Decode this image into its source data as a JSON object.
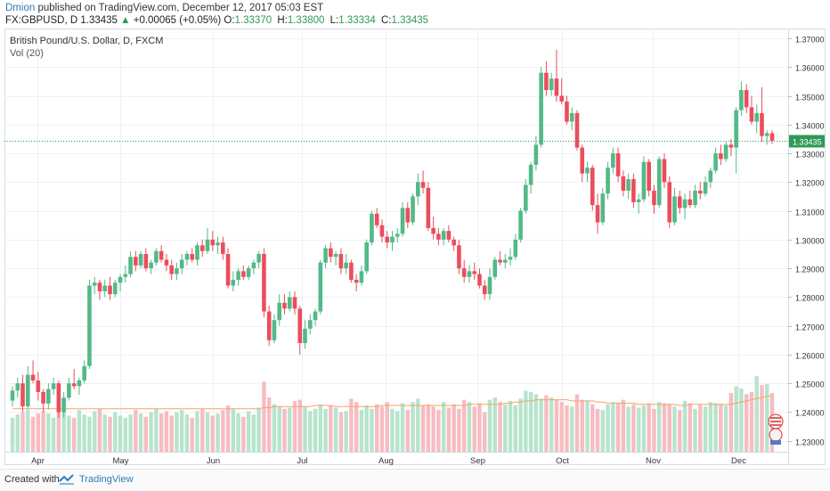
{
  "header": {
    "author": "Dmion",
    "published_text": "published on TradingView.com, December 12, 2017 05:03 EST",
    "symbol_interval": "FX:GBPUSD, D",
    "last": "1.33435",
    "change": "+0.00065 (+0.05%)",
    "o_label": "O:",
    "o_value": "1.33370",
    "h_label": "H:",
    "h_value": "1.33800",
    "l_label": "L:",
    "l_value": "1.33334",
    "c_label": "C:",
    "c_value": "1.33435"
  },
  "legend": {
    "title": "British Pound/U.S. Dollar, D, FXCM",
    "volume_label": "Vol (20)"
  },
  "footer": {
    "created_with": "Created with",
    "brand": "TradingView"
  },
  "colors": {
    "up": "#53b987",
    "down": "#eb4d5c",
    "volume_up": "#b7e4cc",
    "volume_down": "#f7bcc1",
    "ma_line": "#f2a46b",
    "last_price_line": "#2e9a56",
    "grid": "#eef1f5",
    "axis_text": "#333333"
  },
  "chart_data": {
    "type": "candlestick",
    "symbol": "FX:GBPUSD",
    "interval": "D",
    "ylim": [
      1.2262,
      1.3734
    ],
    "y_ticks": [
      "1.37000",
      "1.36000",
      "1.35000",
      "1.34000",
      "1.33000",
      "1.32000",
      "1.31000",
      "1.30000",
      "1.29000",
      "1.28000",
      "1.27000",
      "1.26000",
      "1.25000",
      "1.24000",
      "1.23000"
    ],
    "x_ticks": [
      "Apr",
      "May",
      "Jun",
      "Jul",
      "Aug",
      "Sep",
      "Oct",
      "Nov",
      "Dec"
    ],
    "last_price_label": "1.33435",
    "grid": true,
    "candles_ohlc": [
      [
        1.244,
        1.249,
        1.242,
        1.2475
      ],
      [
        1.2475,
        1.252,
        1.245,
        1.25
      ],
      [
        1.25,
        1.253,
        1.24,
        1.242
      ],
      [
        1.242,
        1.256,
        1.241,
        1.253
      ],
      [
        1.253,
        1.258,
        1.25,
        1.251
      ],
      [
        1.251,
        1.254,
        1.244,
        1.247
      ],
      [
        1.247,
        1.248,
        1.24,
        1.243
      ],
      [
        1.243,
        1.25,
        1.241,
        1.248
      ],
      [
        1.248,
        1.252,
        1.246,
        1.25
      ],
      [
        1.25,
        1.251,
        1.238,
        1.24
      ],
      [
        1.24,
        1.247,
        1.238,
        1.245
      ],
      [
        1.245,
        1.252,
        1.244,
        1.25
      ],
      [
        1.25,
        1.255,
        1.248,
        1.249
      ],
      [
        1.249,
        1.252,
        1.246,
        1.251
      ],
      [
        1.251,
        1.258,
        1.25,
        1.256
      ],
      [
        1.256,
        1.286,
        1.255,
        1.284
      ],
      [
        1.284,
        1.287,
        1.281,
        1.285
      ],
      [
        1.285,
        1.286,
        1.279,
        1.282
      ],
      [
        1.282,
        1.286,
        1.28,
        1.284
      ],
      [
        1.284,
        1.287,
        1.279,
        1.281
      ],
      [
        1.281,
        1.286,
        1.28,
        1.285
      ],
      [
        1.285,
        1.288,
        1.282,
        1.287
      ],
      [
        1.287,
        1.291,
        1.285,
        1.288
      ],
      [
        1.288,
        1.296,
        1.287,
        1.294
      ],
      [
        1.294,
        1.296,
        1.289,
        1.291
      ],
      [
        1.291,
        1.296,
        1.29,
        1.295
      ],
      [
        1.295,
        1.297,
        1.289,
        1.29
      ],
      [
        1.29,
        1.293,
        1.288,
        1.292
      ],
      [
        1.292,
        1.297,
        1.291,
        1.296
      ],
      [
        1.296,
        1.298,
        1.292,
        1.293
      ],
      [
        1.293,
        1.295,
        1.289,
        1.291
      ],
      [
        1.291,
        1.293,
        1.286,
        1.288
      ],
      [
        1.288,
        1.292,
        1.286,
        1.29
      ],
      [
        1.29,
        1.295,
        1.288,
        1.293
      ],
      [
        1.293,
        1.296,
        1.291,
        1.295
      ],
      [
        1.295,
        1.297,
        1.292,
        1.293
      ],
      [
        1.293,
        1.299,
        1.291,
        1.298
      ],
      [
        1.298,
        1.3,
        1.294,
        1.296
      ],
      [
        1.296,
        1.304,
        1.295,
        1.3
      ],
      [
        1.3,
        1.303,
        1.296,
        1.298
      ],
      [
        1.298,
        1.301,
        1.295,
        1.299
      ],
      [
        1.299,
        1.301,
        1.293,
        1.295
      ],
      [
        1.295,
        1.297,
        1.283,
        1.284
      ],
      [
        1.284,
        1.289,
        1.282,
        1.286
      ],
      [
        1.286,
        1.29,
        1.284,
        1.289
      ],
      [
        1.289,
        1.291,
        1.286,
        1.287
      ],
      [
        1.287,
        1.291,
        1.286,
        1.29
      ],
      [
        1.29,
        1.293,
        1.288,
        1.292
      ],
      [
        1.292,
        1.296,
        1.29,
        1.295
      ],
      [
        1.295,
        1.297,
        1.273,
        1.275
      ],
      [
        1.275,
        1.277,
        1.263,
        1.265
      ],
      [
        1.265,
        1.274,
        1.264,
        1.272
      ],
      [
        1.272,
        1.281,
        1.27,
        1.278
      ],
      [
        1.278,
        1.281,
        1.274,
        1.276
      ],
      [
        1.276,
        1.282,
        1.275,
        1.28
      ],
      [
        1.28,
        1.282,
        1.274,
        1.276
      ],
      [
        1.276,
        1.277,
        1.26,
        1.264
      ],
      [
        1.264,
        1.272,
        1.262,
        1.269
      ],
      [
        1.269,
        1.274,
        1.267,
        1.272
      ],
      [
        1.272,
        1.276,
        1.27,
        1.275
      ],
      [
        1.275,
        1.293,
        1.274,
        1.292
      ],
      [
        1.292,
        1.298,
        1.29,
        1.297
      ],
      [
        1.297,
        1.299,
        1.292,
        1.294
      ],
      [
        1.294,
        1.296,
        1.291,
        1.295
      ],
      [
        1.295,
        1.297,
        1.288,
        1.29
      ],
      [
        1.29,
        1.295,
        1.288,
        1.292
      ],
      [
        1.292,
        1.293,
        1.285,
        1.286
      ],
      [
        1.286,
        1.288,
        1.282,
        1.285
      ],
      [
        1.285,
        1.291,
        1.284,
        1.289
      ],
      [
        1.289,
        1.3,
        1.288,
        1.299
      ],
      [
        1.299,
        1.31,
        1.298,
        1.309
      ],
      [
        1.309,
        1.311,
        1.304,
        1.305
      ],
      [
        1.305,
        1.307,
        1.299,
        1.301
      ],
      [
        1.301,
        1.303,
        1.297,
        1.299
      ],
      [
        1.299,
        1.303,
        1.296,
        1.301
      ],
      [
        1.301,
        1.304,
        1.299,
        1.302
      ],
      [
        1.302,
        1.313,
        1.301,
        1.311
      ],
      [
        1.311,
        1.313,
        1.304,
        1.306
      ],
      [
        1.306,
        1.316,
        1.305,
        1.315
      ],
      [
        1.315,
        1.323,
        1.312,
        1.32
      ],
      [
        1.32,
        1.324,
        1.316,
        1.318
      ],
      [
        1.318,
        1.32,
        1.303,
        1.304
      ],
      [
        1.304,
        1.308,
        1.3,
        1.302
      ],
      [
        1.302,
        1.304,
        1.298,
        1.3
      ],
      [
        1.3,
        1.304,
        1.298,
        1.303
      ],
      [
        1.303,
        1.305,
        1.299,
        1.3
      ],
      [
        1.3,
        1.301,
        1.296,
        1.298
      ],
      [
        1.298,
        1.3,
        1.288,
        1.29
      ],
      [
        1.29,
        1.293,
        1.285,
        1.287
      ],
      [
        1.287,
        1.291,
        1.285,
        1.289
      ],
      [
        1.289,
        1.292,
        1.286,
        1.288
      ],
      [
        1.288,
        1.29,
        1.283,
        1.284
      ],
      [
        1.284,
        1.286,
        1.279,
        1.281
      ],
      [
        1.281,
        1.29,
        1.279,
        1.287
      ],
      [
        1.287,
        1.294,
        1.286,
        1.293
      ],
      [
        1.293,
        1.296,
        1.291,
        1.292
      ],
      [
        1.292,
        1.295,
        1.29,
        1.293
      ],
      [
        1.293,
        1.297,
        1.291,
        1.294
      ],
      [
        1.294,
        1.302,
        1.293,
        1.3
      ],
      [
        1.3,
        1.311,
        1.299,
        1.31
      ],
      [
        1.31,
        1.321,
        1.309,
        1.319
      ],
      [
        1.319,
        1.327,
        1.316,
        1.326
      ],
      [
        1.326,
        1.336,
        1.324,
        1.333
      ],
      [
        1.333,
        1.36,
        1.332,
        1.358
      ],
      [
        1.358,
        1.362,
        1.35,
        1.352
      ],
      [
        1.352,
        1.358,
        1.35,
        1.356
      ],
      [
        1.356,
        1.366,
        1.348,
        1.35
      ],
      [
        1.35,
        1.356,
        1.347,
        1.348
      ],
      [
        1.348,
        1.35,
        1.34,
        1.341
      ],
      [
        1.341,
        1.346,
        1.338,
        1.344
      ],
      [
        1.344,
        1.345,
        1.331,
        1.332
      ],
      [
        1.332,
        1.333,
        1.32,
        1.323
      ],
      [
        1.323,
        1.327,
        1.32,
        1.325
      ],
      [
        1.325,
        1.326,
        1.31,
        1.312
      ],
      [
        1.312,
        1.316,
        1.302,
        1.306
      ],
      [
        1.306,
        1.318,
        1.305,
        1.316
      ],
      [
        1.316,
        1.327,
        1.314,
        1.325
      ],
      [
        1.325,
        1.332,
        1.323,
        1.33
      ],
      [
        1.33,
        1.332,
        1.32,
        1.322
      ],
      [
        1.322,
        1.324,
        1.315,
        1.317
      ],
      [
        1.317,
        1.323,
        1.314,
        1.321
      ],
      [
        1.321,
        1.323,
        1.311,
        1.313
      ],
      [
        1.313,
        1.316,
        1.309,
        1.314
      ],
      [
        1.314,
        1.329,
        1.313,
        1.327
      ],
      [
        1.327,
        1.328,
        1.315,
        1.317
      ],
      [
        1.317,
        1.319,
        1.309,
        1.312
      ],
      [
        1.312,
        1.329,
        1.311,
        1.328
      ],
      [
        1.328,
        1.33,
        1.318,
        1.32
      ],
      [
        1.32,
        1.322,
        1.304,
        1.306
      ],
      [
        1.306,
        1.318,
        1.305,
        1.315
      ],
      [
        1.315,
        1.317,
        1.309,
        1.311
      ],
      [
        1.311,
        1.316,
        1.307,
        1.314
      ],
      [
        1.314,
        1.317,
        1.311,
        1.312
      ],
      [
        1.312,
        1.319,
        1.311,
        1.317
      ],
      [
        1.317,
        1.32,
        1.314,
        1.316
      ],
      [
        1.316,
        1.322,
        1.315,
        1.32
      ],
      [
        1.32,
        1.325,
        1.318,
        1.324
      ],
      [
        1.324,
        1.332,
        1.323,
        1.33
      ],
      [
        1.33,
        1.333,
        1.326,
        1.328
      ],
      [
        1.328,
        1.334,
        1.327,
        1.333
      ],
      [
        1.333,
        1.335,
        1.329,
        1.332
      ],
      [
        1.332,
        1.346,
        1.323,
        1.345
      ],
      [
        1.345,
        1.355,
        1.343,
        1.352
      ],
      [
        1.352,
        1.354,
        1.344,
        1.346
      ],
      [
        1.346,
        1.35,
        1.34,
        1.341
      ],
      [
        1.341,
        1.347,
        1.337,
        1.344
      ],
      [
        1.344,
        1.353,
        1.334,
        1.336
      ],
      [
        1.336,
        1.338,
        1.333,
        1.337
      ],
      [
        1.337,
        1.338,
        1.3333,
        1.3344
      ]
    ],
    "volume": [
      30,
      33,
      35,
      37,
      31,
      34,
      36,
      34,
      30,
      35,
      39,
      32,
      30,
      37,
      33,
      31,
      36,
      38,
      33,
      31,
      35,
      32,
      30,
      33,
      37,
      34,
      31,
      35,
      38,
      34,
      36,
      32,
      35,
      37,
      33,
      30,
      36,
      38,
      35,
      32,
      34,
      37,
      41,
      38,
      34,
      31,
      36,
      33,
      39,
      62,
      48,
      42,
      40,
      38,
      39,
      45,
      46,
      40,
      36,
      38,
      42,
      38,
      41,
      39,
      35,
      36,
      47,
      44,
      37,
      41,
      38,
      42,
      40,
      44,
      38,
      36,
      43,
      37,
      44,
      47,
      41,
      42,
      40,
      37,
      44,
      39,
      42,
      38,
      46,
      44,
      40,
      43,
      35,
      46,
      48,
      44,
      42,
      45,
      41,
      47,
      54,
      53,
      51,
      47,
      50,
      48,
      46,
      44,
      41,
      40,
      51,
      46,
      45,
      42,
      38,
      37,
      42,
      44,
      43,
      46,
      40,
      42,
      39,
      41,
      43,
      38,
      44,
      43,
      42,
      40,
      37,
      45,
      43,
      38,
      42,
      40,
      44,
      43,
      42,
      41,
      52,
      58,
      56,
      51,
      53,
      67,
      59,
      60,
      52,
      46,
      44
    ],
    "volume_ma": [
      38,
      38,
      38,
      38,
      38,
      38,
      38,
      38,
      38,
      38,
      38,
      38,
      38,
      38,
      38,
      38,
      38,
      38,
      38,
      38,
      38,
      38,
      38,
      38,
      38,
      38,
      38,
      38,
      38,
      38,
      38,
      38,
      38,
      38,
      38,
      38,
      38,
      38,
      38,
      38,
      38,
      38,
      38,
      38,
      38,
      38,
      38,
      38,
      38,
      39,
      39,
      40,
      40,
      40,
      40,
      40,
      40,
      40,
      40,
      41,
      41,
      41,
      41,
      40,
      40,
      40,
      40,
      40,
      40,
      40,
      40,
      40,
      41,
      41,
      41,
      41,
      41,
      41,
      41,
      41,
      41,
      41,
      41,
      41,
      41,
      41,
      41,
      41,
      41,
      42,
      42,
      42,
      42,
      42,
      42,
      42,
      43,
      43,
      44,
      44,
      45,
      45,
      46,
      46,
      46,
      46,
      46,
      46,
      46,
      45,
      45,
      45,
      45,
      45,
      44,
      44,
      43,
      43,
      43,
      43,
      43,
      43,
      42,
      42,
      42,
      42,
      42,
      42,
      42,
      42,
      41,
      41,
      42,
      42,
      42,
      42,
      42,
      42,
      42,
      42,
      42,
      43,
      44,
      45,
      46,
      47,
      48,
      49,
      50,
      50,
      50
    ]
  }
}
